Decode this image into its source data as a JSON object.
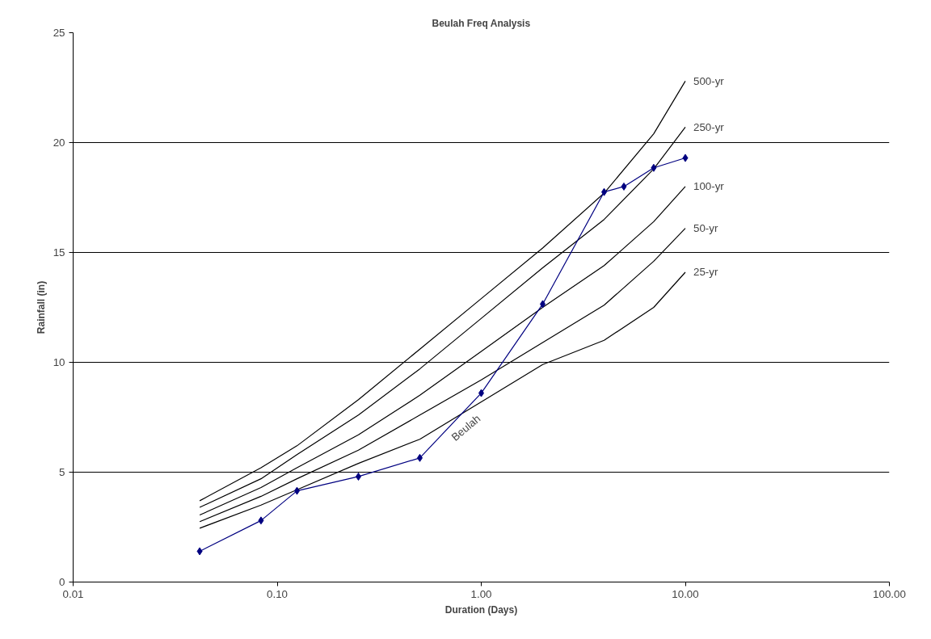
{
  "chart_data": {
    "type": "line",
    "title": "Beulah Freq Analysis",
    "xlabel": "Duration (Days)",
    "ylabel": "Rainfall (in)",
    "log": "x",
    "grid": "y",
    "line_style": "solid",
    "xlim": [
      0.01,
      100
    ],
    "ylim": [
      0,
      25
    ],
    "xticks": [
      {
        "value": 0.01,
        "label": "0.01"
      },
      {
        "value": 0.1,
        "label": "0.10"
      },
      {
        "value": 1,
        "label": "1.00"
      },
      {
        "value": 10,
        "label": "10.00"
      },
      {
        "value": 100,
        "label": "100.00"
      }
    ],
    "yticks": [
      0,
      5,
      10,
      15,
      20,
      25
    ],
    "series": [
      {
        "name": "500-yr",
        "color": "#000000",
        "marker": "none",
        "x": [
          0.0417,
          0.0833,
          0.125,
          0.25,
          0.5,
          1,
          2,
          4,
          7,
          10
        ],
        "values": [
          3.7,
          5.2,
          6.2,
          8.3,
          10.6,
          12.9,
          15.2,
          17.7,
          20.4,
          22.8
        ]
      },
      {
        "name": "250-yr",
        "color": "#000000",
        "marker": "none",
        "x": [
          0.0417,
          0.0833,
          0.125,
          0.25,
          0.5,
          1,
          2,
          4,
          7,
          10
        ],
        "values": [
          3.4,
          4.7,
          5.8,
          7.6,
          9.7,
          12.0,
          14.3,
          16.5,
          18.8,
          20.7
        ]
      },
      {
        "name": "100-yr",
        "color": "#000000",
        "marker": "none",
        "x": [
          0.0417,
          0.0833,
          0.125,
          0.25,
          0.5,
          1,
          2,
          4,
          7,
          10
        ],
        "values": [
          3.05,
          4.3,
          5.2,
          6.7,
          8.5,
          10.5,
          12.5,
          14.4,
          16.4,
          18.0
        ]
      },
      {
        "name": "50-yr",
        "color": "#000000",
        "marker": "none",
        "x": [
          0.0417,
          0.0833,
          0.125,
          0.25,
          0.5,
          1,
          2,
          4,
          7,
          10
        ],
        "values": [
          2.75,
          3.9,
          4.7,
          6.0,
          7.6,
          9.2,
          10.9,
          12.6,
          14.6,
          16.1
        ]
      },
      {
        "name": "25-yr",
        "color": "#000000",
        "marker": "none",
        "x": [
          0.0417,
          0.0833,
          0.125,
          0.25,
          0.5,
          1,
          2,
          4,
          7,
          10
        ],
        "values": [
          2.45,
          3.5,
          4.2,
          5.4,
          6.5,
          8.2,
          9.9,
          11.0,
          12.5,
          14.1
        ]
      },
      {
        "name": "Beulah",
        "color": "#000080",
        "marker": "diamond",
        "x": [
          0.0417,
          0.0833,
          0.125,
          0.25,
          0.5,
          1,
          2,
          4,
          5,
          7,
          10
        ],
        "values": [
          1.4,
          2.8,
          4.15,
          4.8,
          5.65,
          8.6,
          12.65,
          17.75,
          18.0,
          18.85,
          19.3
        ]
      }
    ]
  }
}
